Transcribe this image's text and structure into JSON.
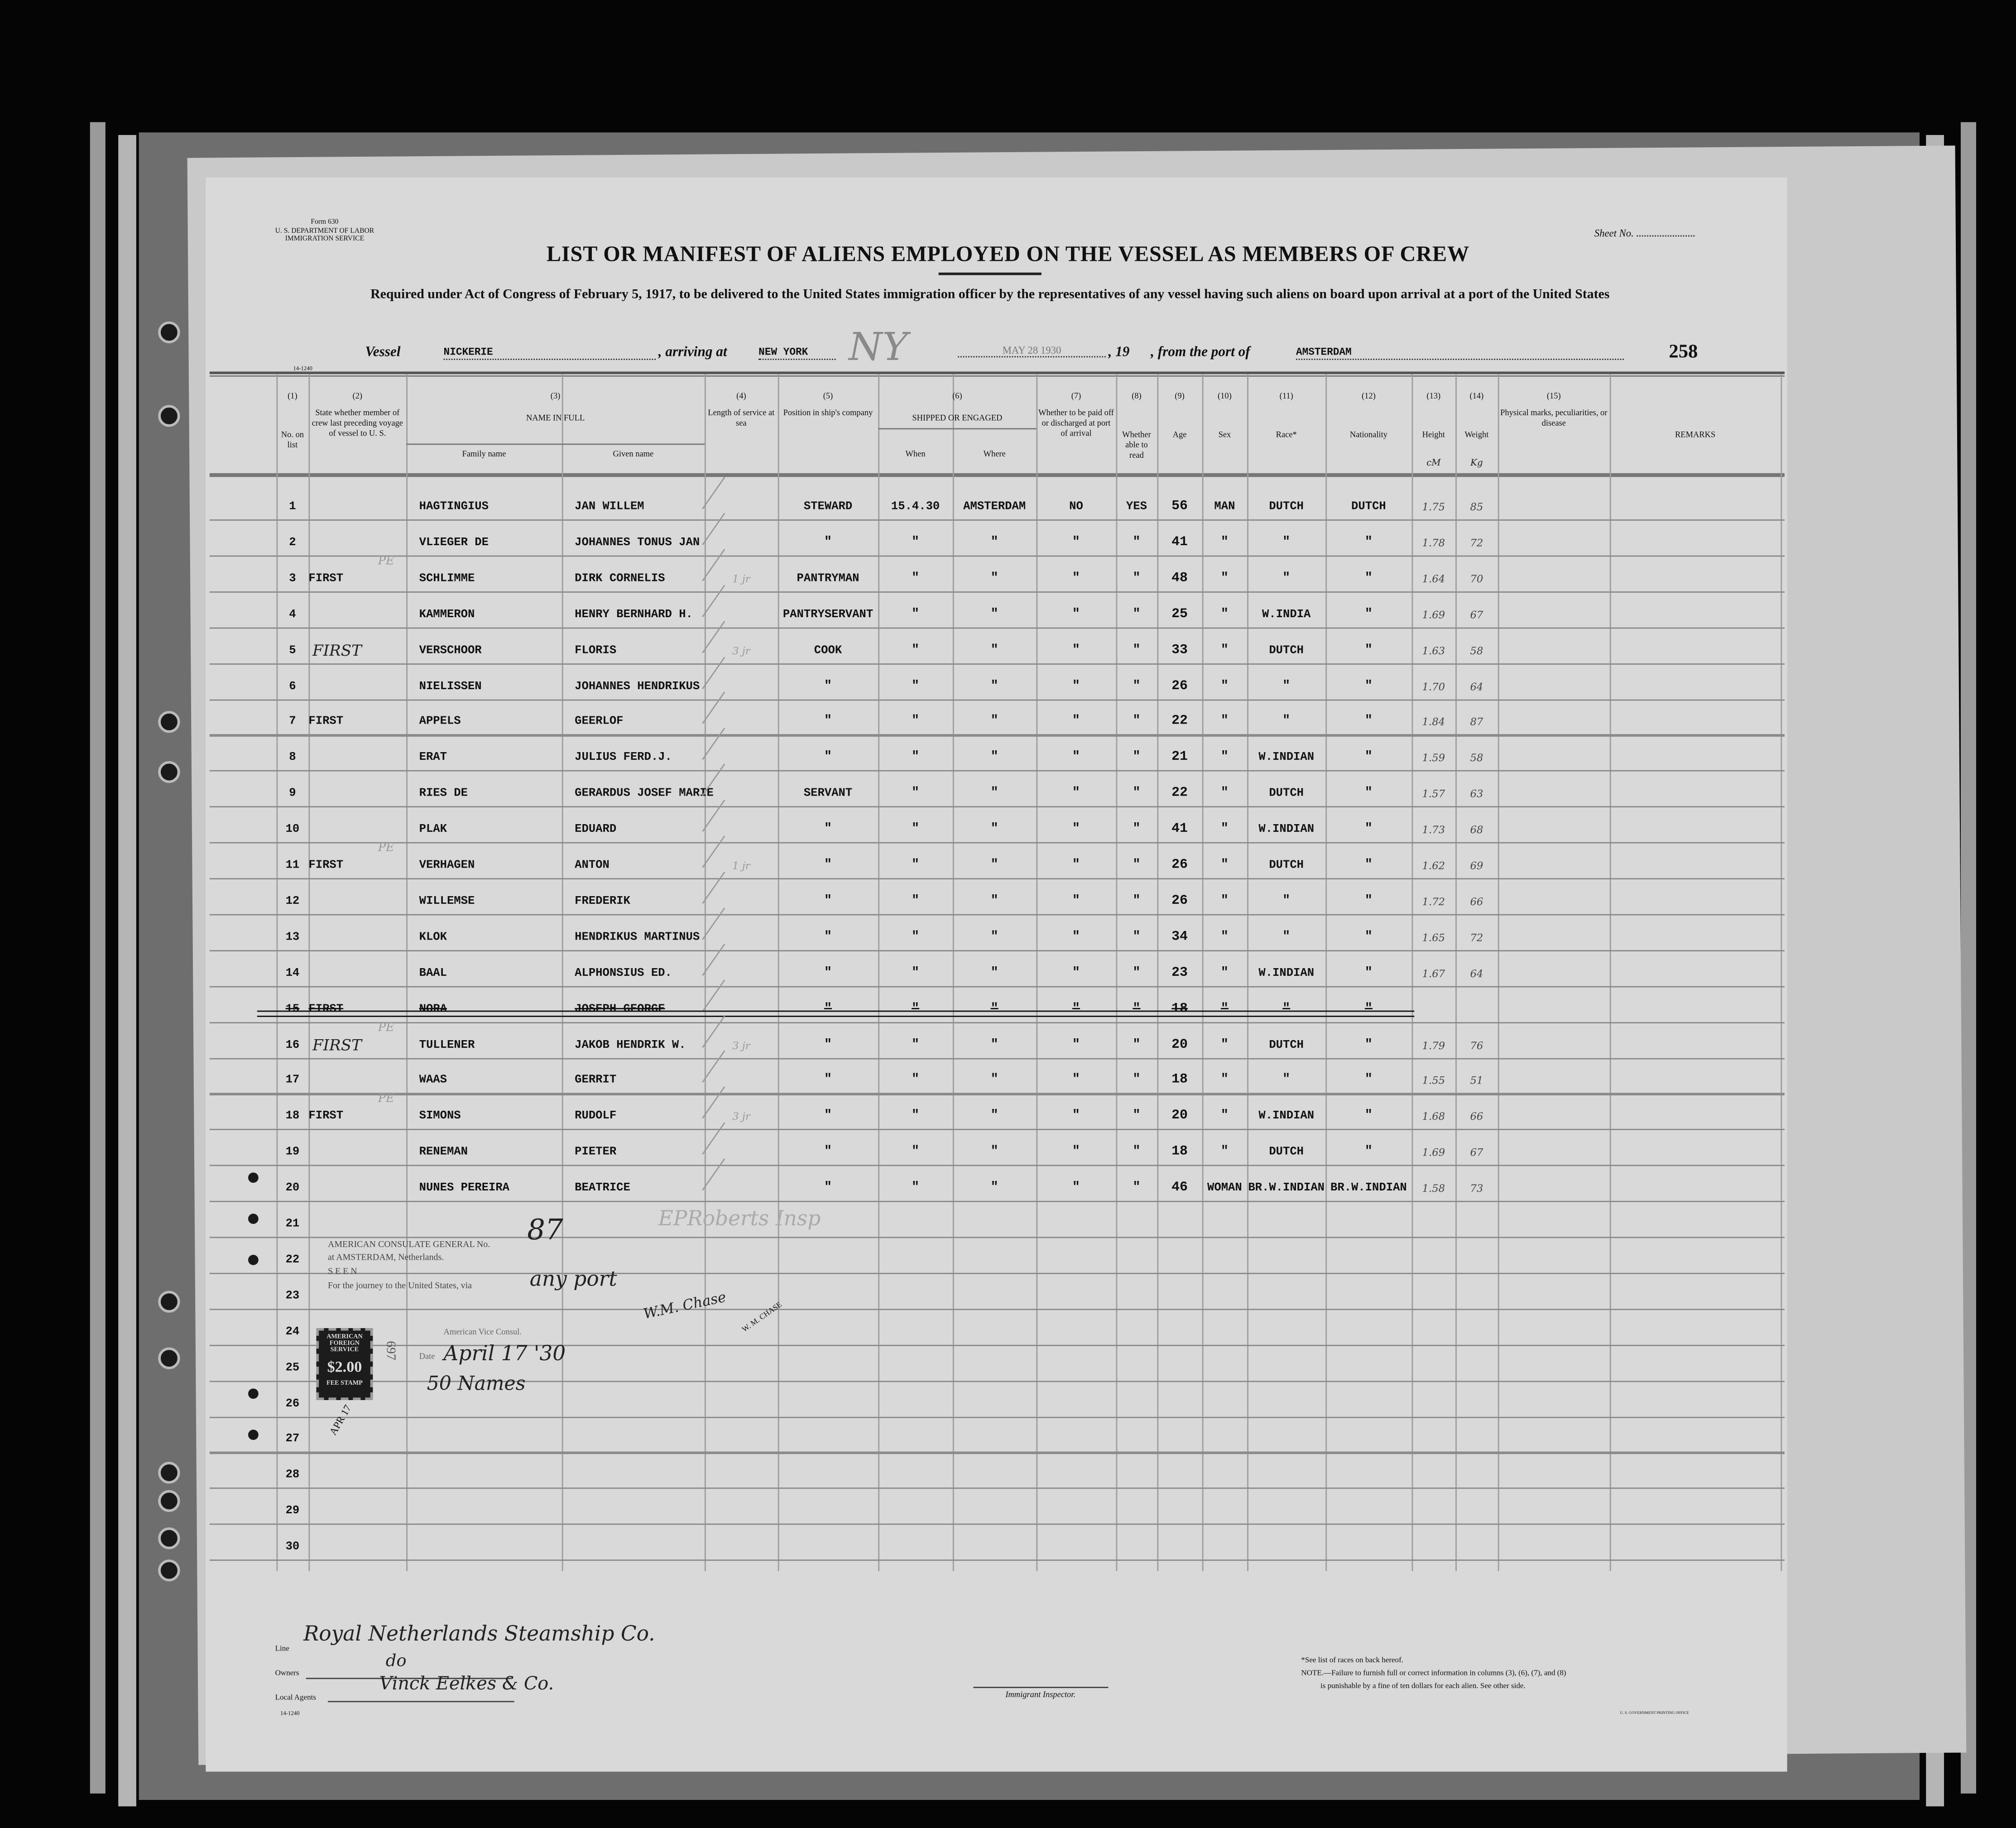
{
  "form": {
    "form_no": "Form 630",
    "department": "U. S. DEPARTMENT OF LABOR",
    "service": "IMMIGRATION SERVICE",
    "sheet_no_label": "Sheet No.",
    "title": "LIST OR MANIFEST OF ALIENS EMPLOYED ON THE VESSEL AS MEMBERS OF CREW",
    "subtitle": "Required under Act of Congress of February 5, 1917, to be delivered to the United States immigration officer by the representatives of any vessel having such aliens on board upon arrival at a port of the United States",
    "margin_code": "14-1240",
    "page_number": "258"
  },
  "vessel_line": {
    "vessel_label": "Vessel",
    "vessel": "NICKERIE",
    "arriving_label": ", arriving at",
    "arriving": "NEW YORK",
    "ny_mark": "NY",
    "date_stamp": "MAY 28 1930",
    "year_label": ", 19",
    "from_label": ", from the port of",
    "from_port": "AMSTERDAM"
  },
  "columns": [
    {
      "num": "(1)",
      "label": "No. on list"
    },
    {
      "num": "(2)",
      "label": "State whether member of crew last preceding voyage of vessel to U. S."
    },
    {
      "num": "(3)",
      "label": "NAME IN FULL",
      "sub": [
        "Family name",
        "Given name"
      ]
    },
    {
      "num": "(4)",
      "label": "Length of service at sea"
    },
    {
      "num": "(5)",
      "label": "Position in ship's company"
    },
    {
      "num": "(6)",
      "label": "SHIPPED OR ENGAGED",
      "sub": [
        "When",
        "Where"
      ]
    },
    {
      "num": "(7)",
      "label": "Whether to be paid off or discharged at port of arrival"
    },
    {
      "num": "(8)",
      "label": "Whether able to read"
    },
    {
      "num": "(9)",
      "label": "Age"
    },
    {
      "num": "(10)",
      "label": "Sex"
    },
    {
      "num": "(11)",
      "label": "Race*"
    },
    {
      "num": "(12)",
      "label": "Nationality"
    },
    {
      "num": "(13)",
      "label": "Height",
      "unit": "cM"
    },
    {
      "num": "(14)",
      "label": "Weight",
      "unit": "Kg"
    },
    {
      "num": "(15)",
      "label": "Physical marks, peculiarities, or disease"
    },
    {
      "num": "",
      "label": "REMARKS"
    }
  ],
  "rows": [
    {
      "no": "1",
      "prev": "",
      "note": "",
      "family": "HAGTINGIUS",
      "given": "JAN WILLEM",
      "length": "",
      "position": "STEWARD",
      "when": "15.4.30",
      "where": "AMSTERDAM",
      "paid": "NO",
      "read": "YES",
      "age": "56",
      "sex": "MAN",
      "race": "DUTCH",
      "nationality": "DUTCH",
      "height": "1.75",
      "weight": "85"
    },
    {
      "no": "2",
      "prev": "",
      "note": "",
      "family": "VLIEGER DE",
      "given": "JOHANNES TONUS JAN",
      "length": "",
      "position": "\"",
      "when": "\"",
      "where": "\"",
      "paid": "\"",
      "read": "\"",
      "age": "41",
      "sex": "\"",
      "race": "\"",
      "nationality": "\"",
      "height": "1.78",
      "weight": "72"
    },
    {
      "no": "3",
      "prev": "FIRST",
      "note": "PE",
      "family": "SCHLIMME",
      "given": "DIRK CORNELIS",
      "length": "1 jr",
      "position": "PANTRYMAN",
      "when": "\"",
      "where": "\"",
      "paid": "\"",
      "read": "\"",
      "age": "48",
      "sex": "\"",
      "race": "\"",
      "nationality": "\"",
      "height": "1.64",
      "weight": "70"
    },
    {
      "no": "4",
      "prev": "",
      "note": "",
      "family": "KAMMERON",
      "given": "HENRY BERNHARD H.",
      "length": "",
      "position": "PANTRYSERVANT",
      "when": "\"",
      "where": "\"",
      "paid": "\"",
      "read": "\"",
      "age": "25",
      "sex": "\"",
      "race": "W.INDIA",
      "nationality": "\"",
      "height": "1.69",
      "weight": "67"
    },
    {
      "no": "5",
      "prev": "FIRST",
      "note": "",
      "family": "VERSCHOOR",
      "given": "FLORIS",
      "length": "3 jr",
      "position": "COOK",
      "when": "\"",
      "where": "\"",
      "paid": "\"",
      "read": "\"",
      "age": "33",
      "sex": "\"",
      "race": "DUTCH",
      "nationality": "\"",
      "height": "1.63",
      "weight": "58"
    },
    {
      "no": "6",
      "prev": "",
      "note": "",
      "family": "NIELISSEN",
      "given": "JOHANNES HENDRIKUS",
      "length": "",
      "position": "\"",
      "when": "\"",
      "where": "\"",
      "paid": "\"",
      "read": "\"",
      "age": "26",
      "sex": "\"",
      "race": "\"",
      "nationality": "\"",
      "height": "1.70",
      "weight": "64"
    },
    {
      "no": "7",
      "prev": "FIRST",
      "note": "",
      "family": "APPELS",
      "given": "GEERLOF",
      "length": "",
      "position": "\"",
      "when": "\"",
      "where": "\"",
      "paid": "\"",
      "read": "\"",
      "age": "22",
      "sex": "\"",
      "race": "\"",
      "nationality": "\"",
      "height": "1.84",
      "weight": "87"
    },
    {
      "no": "8",
      "prev": "",
      "note": "",
      "family": "ERAT",
      "given": "JULIUS FERD.J.",
      "length": "",
      "position": "\"",
      "when": "\"",
      "where": "\"",
      "paid": "\"",
      "read": "\"",
      "age": "21",
      "sex": "\"",
      "race": "W.INDIAN",
      "nationality": "\"",
      "height": "1.59",
      "weight": "58"
    },
    {
      "no": "9",
      "prev": "",
      "note": "",
      "family": "RIES DE",
      "given": "GERARDUS JOSEF MARIE",
      "length": "",
      "position": "SERVANT",
      "when": "\"",
      "where": "\"",
      "paid": "\"",
      "read": "\"",
      "age": "22",
      "sex": "\"",
      "race": "DUTCH",
      "nationality": "\"",
      "height": "1.57",
      "weight": "63"
    },
    {
      "no": "10",
      "prev": "",
      "note": "",
      "family": "PLAK",
      "given": "EDUARD",
      "length": "",
      "position": "\"",
      "when": "\"",
      "where": "\"",
      "paid": "\"",
      "read": "\"",
      "age": "41",
      "sex": "\"",
      "race": "W.INDIAN",
      "nationality": "\"",
      "height": "1.73",
      "weight": "68"
    },
    {
      "no": "11",
      "prev": "FIRST",
      "note": "PE",
      "family": "VERHAGEN",
      "given": "ANTON",
      "length": "1 jr",
      "position": "\"",
      "when": "\"",
      "where": "\"",
      "paid": "\"",
      "read": "\"",
      "age": "26",
      "sex": "\"",
      "race": "DUTCH",
      "nationality": "\"",
      "height": "1.62",
      "weight": "69"
    },
    {
      "no": "12",
      "prev": "",
      "note": "",
      "family": "WILLEMSE",
      "given": "FREDERIK",
      "length": "",
      "position": "\"",
      "when": "\"",
      "where": "\"",
      "paid": "\"",
      "read": "\"",
      "age": "26",
      "sex": "\"",
      "race": "\"",
      "nationality": "\"",
      "height": "1.72",
      "weight": "66"
    },
    {
      "no": "13",
      "prev": "",
      "note": "",
      "family": "KLOK",
      "given": "HENDRIKUS MARTINUS",
      "length": "",
      "position": "\"",
      "when": "\"",
      "where": "\"",
      "paid": "\"",
      "read": "\"",
      "age": "34",
      "sex": "\"",
      "race": "\"",
      "nationality": "\"",
      "height": "1.65",
      "weight": "72"
    },
    {
      "no": "14",
      "prev": "",
      "note": "",
      "family": "BAAL",
      "given": "ALPHONSIUS ED.",
      "length": "",
      "position": "\"",
      "when": "\"",
      "where": "\"",
      "paid": "\"",
      "read": "\"",
      "age": "23",
      "sex": "\"",
      "race": "W.INDIAN",
      "nationality": "\"",
      "height": "1.67",
      "weight": "64"
    },
    {
      "no": "15",
      "prev": "FIRST",
      "note": "",
      "family": "NORA",
      "given": "JOSEPH GEORGE",
      "length": "",
      "position": "\"",
      "when": "\"",
      "where": "\"",
      "paid": "\"",
      "read": "\"",
      "age": "18",
      "sex": "\"",
      "race": "\"",
      "nationality": "\"",
      "height": "",
      "weight": "",
      "struck": true
    },
    {
      "no": "16",
      "prev": "FIRST",
      "note": "PE",
      "family": "TULLENER",
      "given": "JAKOB HENDRIK W.",
      "length": "3 jr",
      "position": "\"",
      "when": "\"",
      "where": "\"",
      "paid": "\"",
      "read": "\"",
      "age": "20",
      "sex": "\"",
      "race": "DUTCH",
      "nationality": "\"",
      "height": "1.79",
      "weight": "76"
    },
    {
      "no": "17",
      "prev": "",
      "note": "",
      "family": "WAAS",
      "given": "GERRIT",
      "length": "",
      "position": "\"",
      "when": "\"",
      "where": "\"",
      "paid": "\"",
      "read": "\"",
      "age": "18",
      "sex": "\"",
      "race": "\"",
      "nationality": "\"",
      "height": "1.55",
      "weight": "51"
    },
    {
      "no": "18",
      "prev": "FIRST",
      "note": "PE",
      "family": "SIMONS",
      "given": "RUDOLF",
      "length": "3 jr",
      "position": "\"",
      "when": "\"",
      "where": "\"",
      "paid": "\"",
      "read": "\"",
      "age": "20",
      "sex": "\"",
      "race": "W.INDIAN",
      "nationality": "\"",
      "height": "1.68",
      "weight": "66"
    },
    {
      "no": "19",
      "prev": "",
      "note": "",
      "family": "RENEMAN",
      "given": "PIETER",
      "length": "",
      "position": "\"",
      "when": "\"",
      "where": "\"",
      "paid": "\"",
      "read": "\"",
      "age": "18",
      "sex": "\"",
      "race": "DUTCH",
      "nationality": "\"",
      "height": "1.69",
      "weight": "67"
    },
    {
      "no": "20",
      "prev": "",
      "note": "",
      "family": "NUNES PEREIRA",
      "given": "BEATRICE",
      "length": "",
      "position": "\"",
      "when": "\"",
      "where": "\"",
      "paid": "\"",
      "read": "\"",
      "age": "46",
      "sex": "WOMAN",
      "race": "BR.W.INDIAN",
      "nationality": "BR.W.INDIAN",
      "height": "1.58",
      "weight": "73"
    }
  ],
  "empty_row_numbers": [
    "21",
    "22",
    "23",
    "24",
    "25",
    "26",
    "27",
    "28",
    "29",
    "30"
  ],
  "pencil_note": "EPRoberts Insp",
  "consulate": {
    "line1": "AMERICAN CONSULATE GENERAL No.",
    "number": "87",
    "line2": "at AMSTERDAM, Netherlands.",
    "seen": "S E E N",
    "journey": "For the journey to the United States, via",
    "via": "any port",
    "signature": "W.M. Chase",
    "signer_stamp": "W. M. CHASE",
    "vice_consul": "American Vice Consul.",
    "date_label": "Date",
    "date": "April 17 '30",
    "names_count": "50 Names",
    "fee_stamp": {
      "top": "AMERICAN FOREIGN SERVICE",
      "value": "$2.00",
      "bottom": "FEE STAMP"
    },
    "stamp_number": "697",
    "stamp_date": "APR 17"
  },
  "footer": {
    "line_label": "Line",
    "line_value": "Royal Netherlands Steamship Co.",
    "owners_label": "Owners",
    "owners_value": "do",
    "agents_label": "Local Agents",
    "agents_value": "Vinck Eelkes & Co.",
    "margin_code": "14-1240",
    "inspector_label": "Immigrant Inspector.",
    "races_note": "*See list of races on back hereof.",
    "note": "NOTE.—Failure to furnish full or correct information in columns (3), (6), (7), and (8)",
    "note2": "is punishable by a fine of ten dollars for each alien.  See other side.",
    "printer": "U. S. GOVERNMENT PRINTING OFFICE"
  }
}
